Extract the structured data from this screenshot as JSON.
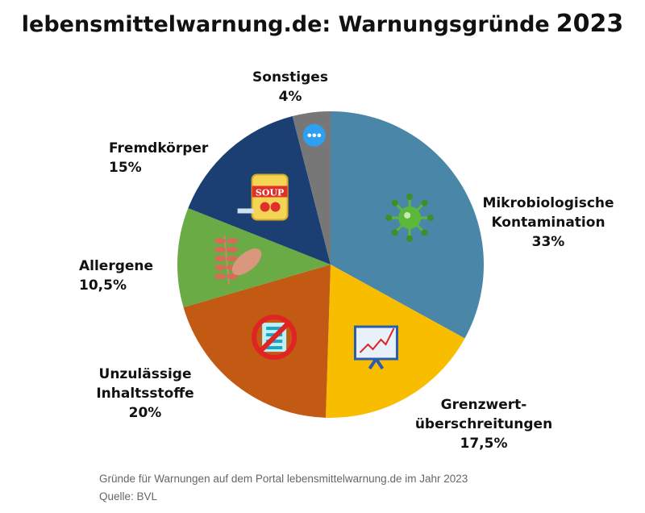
{
  "chart_data": {
    "type": "pie",
    "title": "lebensmittelwarnung.de: Warnungsgründe",
    "title_year": "2023",
    "start": "12 o'clock",
    "direction": "clockwise",
    "slices": [
      {
        "label_lines": [
          "Mikrobiologische",
          "Kontamination"
        ],
        "value_label": "33%",
        "value": 33,
        "color": "#4a86a8",
        "icon": "virus-icon"
      },
      {
        "label_lines": [
          "Grenzwert-",
          "überschreitungen"
        ],
        "value_label": "17,5%",
        "value": 17.5,
        "color": "#f9bd00",
        "icon": "chart-presentation-icon"
      },
      {
        "label_lines": [
          "Unzulässige",
          "Inhaltsstoffe"
        ],
        "value_label": "20%",
        "value": 20,
        "color": "#c25a14",
        "icon": "forbidden-list-icon"
      },
      {
        "label_lines": [
          "Allergene"
        ],
        "value_label": "10,5%",
        "value": 10.5,
        "color": "#6aab45",
        "icon": "wheat-peanut-icon"
      },
      {
        "label_lines": [
          "Fremdkörper"
        ],
        "value_label": "15%",
        "value": 15,
        "color": "#1b3f72",
        "icon": "soup-can-icon"
      },
      {
        "label_lines": [
          "Sonstiges"
        ],
        "value_label": "4%",
        "value": 4,
        "color": "#777777",
        "icon": "more-dots-icon"
      }
    ]
  },
  "footer": {
    "caption": "Gründe für Warnungen auf dem Portal lebensmittelwarnung.de im Jahr 2023",
    "source": "Quelle: BVL"
  },
  "icon_text": {
    "soup": "SOUP"
  }
}
